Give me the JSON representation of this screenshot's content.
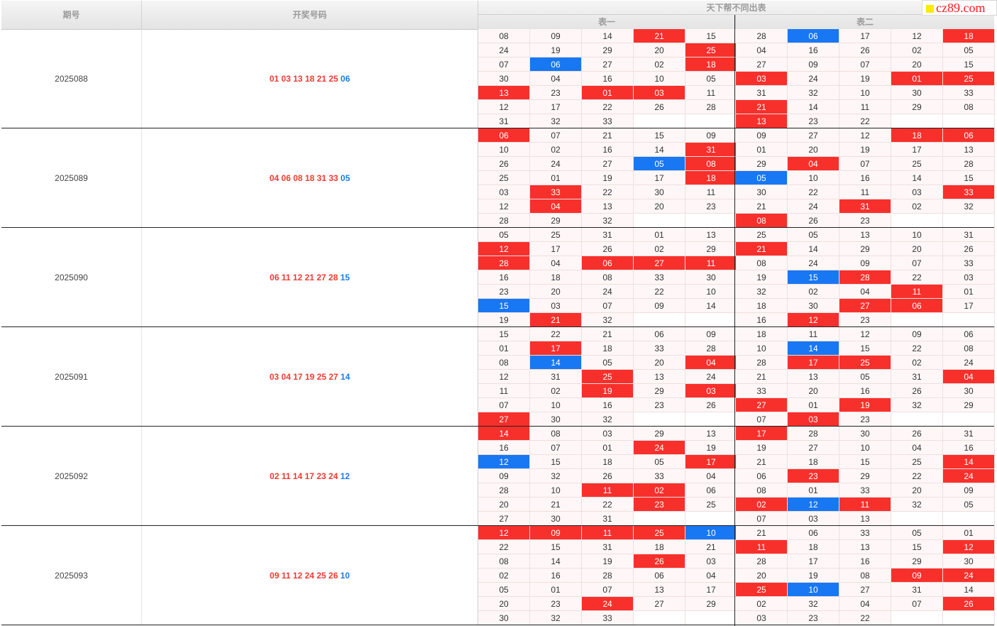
{
  "header": {
    "col_issue": "期号",
    "col_numbers": "开奖号码",
    "group_title": "天下帮不同出表",
    "table1": "表一",
    "table2": "表二"
  },
  "watermark": "cz89.com",
  "colors": {
    "hit_red": "#f8302c",
    "hit_blue": "#1877f2",
    "draw_red": "#f03b30",
    "draw_blue": "#1c7ce6"
  },
  "rows": [
    {
      "issue": "2025088",
      "reds": [
        "01",
        "03",
        "13",
        "18",
        "21",
        "25"
      ],
      "blue": "06",
      "t1": [
        [
          "08",
          "09",
          "14",
          "21r",
          "15"
        ],
        [
          "24",
          "19",
          "29",
          "20",
          "25r"
        ],
        [
          "07",
          "06b",
          "27",
          "02",
          "18r"
        ],
        [
          "30",
          "04",
          "16",
          "10",
          "05"
        ],
        [
          "13r",
          "23",
          "01r",
          "03r",
          "11"
        ],
        [
          "12",
          "17",
          "22",
          "26",
          "28"
        ],
        [
          "31",
          "32",
          "33",
          "",
          ""
        ]
      ],
      "t2": [
        [
          "28",
          "06b",
          "17",
          "12",
          "18r"
        ],
        [
          "04",
          "16",
          "26",
          "02",
          "05"
        ],
        [
          "27",
          "09",
          "07",
          "20",
          "15"
        ],
        [
          "03r",
          "24",
          "19",
          "01r",
          "25r"
        ],
        [
          "31",
          "32",
          "10",
          "30",
          "33"
        ],
        [
          "21r",
          "14",
          "11",
          "29",
          "08"
        ],
        [
          "13r",
          "23",
          "22",
          "",
          ""
        ]
      ]
    },
    {
      "issue": "2025089",
      "reds": [
        "04",
        "06",
        "08",
        "18",
        "31",
        "33"
      ],
      "blue": "05",
      "t1": [
        [
          "06r",
          "07",
          "21",
          "15",
          "09"
        ],
        [
          "10",
          "02",
          "16",
          "14",
          "31r"
        ],
        [
          "26",
          "24",
          "27",
          "05b",
          "08r"
        ],
        [
          "25",
          "01",
          "19",
          "17",
          "18r"
        ],
        [
          "03",
          "33r",
          "22",
          "30",
          "11"
        ],
        [
          "12",
          "04r",
          "13",
          "20",
          "23"
        ],
        [
          "28",
          "29",
          "32",
          "",
          ""
        ]
      ],
      "t2": [
        [
          "09",
          "27",
          "12",
          "18r",
          "06r"
        ],
        [
          "01",
          "20",
          "19",
          "17",
          "13"
        ],
        [
          "29",
          "04r",
          "07",
          "25",
          "28"
        ],
        [
          "05b",
          "10",
          "16",
          "14",
          "15"
        ],
        [
          "30",
          "22",
          "11",
          "03",
          "33r"
        ],
        [
          "21",
          "24",
          "31r",
          "02",
          "32"
        ],
        [
          "08r",
          "26",
          "23",
          "",
          ""
        ]
      ]
    },
    {
      "issue": "2025090",
      "reds": [
        "06",
        "11",
        "12",
        "21",
        "27",
        "28"
      ],
      "blue": "15",
      "t1": [
        [
          "05",
          "25",
          "31",
          "01",
          "13"
        ],
        [
          "12r",
          "17",
          "26",
          "02",
          "29"
        ],
        [
          "28r",
          "04",
          "06r",
          "27r",
          "11r"
        ],
        [
          "16",
          "18",
          "08",
          "33",
          "30"
        ],
        [
          "23",
          "20",
          "24",
          "22",
          "10"
        ],
        [
          "15b",
          "03",
          "07",
          "09",
          "14"
        ],
        [
          "19",
          "21r",
          "32",
          "",
          ""
        ]
      ],
      "t2": [
        [
          "25",
          "05",
          "13",
          "10",
          "31"
        ],
        [
          "21r",
          "14",
          "29",
          "20",
          "26"
        ],
        [
          "08",
          "24",
          "09",
          "07",
          "33"
        ],
        [
          "19",
          "15b",
          "28r",
          "22",
          "03"
        ],
        [
          "32",
          "02",
          "04",
          "11r",
          "01"
        ],
        [
          "18",
          "30",
          "27r",
          "06r",
          "17"
        ],
        [
          "16",
          "12r",
          "23",
          "",
          ""
        ]
      ]
    },
    {
      "issue": "2025091",
      "reds": [
        "03",
        "04",
        "17",
        "19",
        "25",
        "27"
      ],
      "blue": "14",
      "t1": [
        [
          "15",
          "22",
          "21",
          "06",
          "09"
        ],
        [
          "01",
          "17r",
          "18",
          "33",
          "28"
        ],
        [
          "08",
          "14b",
          "05",
          "20",
          "04r"
        ],
        [
          "12",
          "31",
          "25r",
          "13",
          "24"
        ],
        [
          "11",
          "02",
          "19r",
          "29",
          "03r"
        ],
        [
          "07",
          "10",
          "16",
          "23",
          "26"
        ],
        [
          "27r",
          "30",
          "32",
          "",
          ""
        ]
      ],
      "t2": [
        [
          "18",
          "11",
          "12",
          "09",
          "06"
        ],
        [
          "10",
          "14b",
          "15",
          "22",
          "08"
        ],
        [
          "28",
          "17r",
          "25r",
          "02",
          "24"
        ],
        [
          "21",
          "13",
          "05",
          "31",
          "04r"
        ],
        [
          "33",
          "20",
          "16",
          "26",
          "30"
        ],
        [
          "27r",
          "01",
          "19r",
          "32",
          "29"
        ],
        [
          "07",
          "03r",
          "23",
          "",
          ""
        ]
      ]
    },
    {
      "issue": "2025092",
      "reds": [
        "02",
        "11",
        "14",
        "17",
        "23",
        "24"
      ],
      "blue": "12",
      "t1": [
        [
          "14r",
          "08",
          "03",
          "29",
          "13"
        ],
        [
          "16",
          "07",
          "01",
          "24r",
          "19"
        ],
        [
          "12b",
          "15",
          "18",
          "05",
          "17r"
        ],
        [
          "09",
          "32",
          "26",
          "33",
          "04"
        ],
        [
          "28",
          "10",
          "11r",
          "02r",
          "06"
        ],
        [
          "20",
          "21",
          "22",
          "23r",
          "25"
        ],
        [
          "27",
          "30",
          "31",
          "",
          ""
        ]
      ],
      "t2": [
        [
          "17r",
          "28",
          "30",
          "26",
          "31"
        ],
        [
          "19",
          "27",
          "10",
          "04",
          "16"
        ],
        [
          "21",
          "18",
          "15",
          "25",
          "14r"
        ],
        [
          "06",
          "23r",
          "29",
          "22",
          "24r"
        ],
        [
          "08",
          "01",
          "33",
          "20",
          "09"
        ],
        [
          "02r",
          "12b",
          "11r",
          "32",
          "05"
        ],
        [
          "07",
          "03",
          "13",
          "",
          ""
        ]
      ]
    },
    {
      "issue": "2025093",
      "reds": [
        "09",
        "11",
        "12",
        "24",
        "25",
        "26"
      ],
      "blue": "10",
      "t1": [
        [
          "12r",
          "09r",
          "11r",
          "25r",
          "10b"
        ],
        [
          "22",
          "15",
          "31",
          "18",
          "21"
        ],
        [
          "08",
          "14",
          "19",
          "26r",
          "03"
        ],
        [
          "02",
          "16",
          "28",
          "06",
          "04"
        ],
        [
          "05",
          "01",
          "07",
          "13",
          "17"
        ],
        [
          "20",
          "23",
          "24r",
          "27",
          "29"
        ],
        [
          "30",
          "32",
          "33",
          "",
          ""
        ]
      ],
      "t2": [
        [
          "21",
          "06",
          "33",
          "05",
          "01"
        ],
        [
          "11r",
          "18",
          "13",
          "15",
          "12r"
        ],
        [
          "28",
          "17",
          "16",
          "29",
          "30"
        ],
        [
          "20",
          "19",
          "08",
          "09r",
          "24r"
        ],
        [
          "25r",
          "10b",
          "27",
          "31",
          "14"
        ],
        [
          "02",
          "32",
          "04",
          "07",
          "26r"
        ],
        [
          "03",
          "23",
          "22",
          "",
          ""
        ]
      ]
    }
  ]
}
